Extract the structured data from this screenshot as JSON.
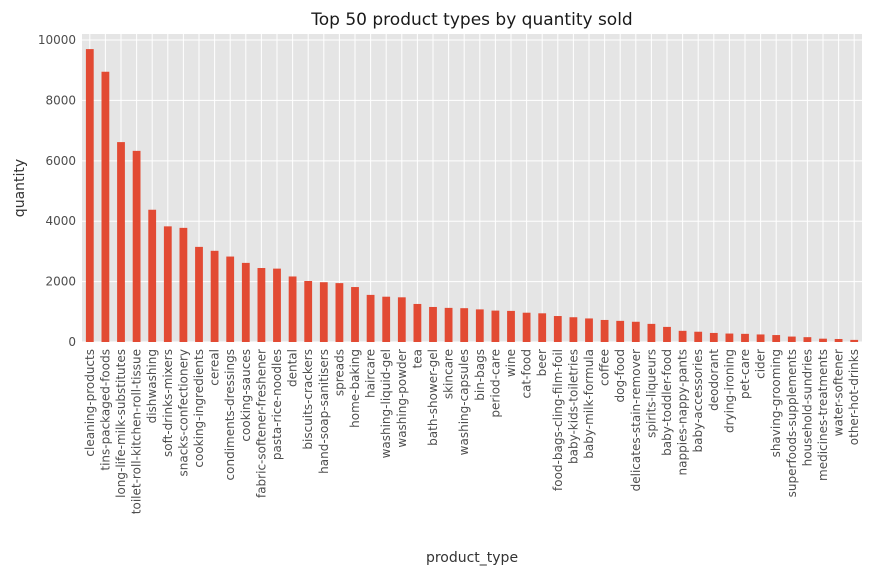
{
  "chart_data": {
    "type": "bar",
    "title": "Top 50 product types by quantity sold",
    "xlabel": "product_type",
    "ylabel": "quantity",
    "ylim": [
      0,
      10200
    ],
    "yticks": [
      0,
      2000,
      4000,
      6000,
      8000,
      10000
    ],
    "grid": true,
    "bar_color": "#E24A33",
    "background_color": "#E5E5E5",
    "grid_color": "#FFFFFF",
    "categories": [
      "cleaning-products",
      "tins-packaged-foods",
      "long-life-milk-substitutes",
      "toilet-roll-kitchen-roll-tissue",
      "dishwashing",
      "soft-drinks-mixers",
      "snacks-confectionery",
      "cooking-ingredients",
      "cereal",
      "condiments-dressings",
      "cooking-sauces",
      "fabric-softener-freshener",
      "pasta-rice-noodles",
      "dental",
      "biscuits-crackers",
      "hand-soap-sanitisers",
      "spreads",
      "home-baking",
      "haircare",
      "washing-liquid-gel",
      "washing-powder",
      "tea",
      "bath-shower-gel",
      "skincare",
      "washing-capsules",
      "bin-bags",
      "period-care",
      "wine",
      "cat-food",
      "beer",
      "food-bags-cling-film-foil",
      "baby-kids-toiletries",
      "baby-milk-formula",
      "coffee",
      "dog-food",
      "delicates-stain-remover",
      "spirits-liqueurs",
      "baby-toddler-food",
      "nappies-nappy-pants",
      "baby-accessories",
      "deodorant",
      "drying-ironing",
      "pet-care",
      "cider",
      "shaving-grooming",
      "superfoods-supplements",
      "household-sundries",
      "medicines-treatments",
      "water-softener",
      "other-hot-drinks"
    ],
    "values": [
      9700,
      8950,
      6620,
      6330,
      4380,
      3830,
      3780,
      3150,
      3020,
      2830,
      2620,
      2450,
      2430,
      2170,
      2020,
      1980,
      1950,
      1820,
      1560,
      1500,
      1480,
      1260,
      1160,
      1130,
      1120,
      1080,
      1040,
      1030,
      970,
      950,
      860,
      820,
      780,
      730,
      700,
      670,
      600,
      500,
      370,
      340,
      300,
      280,
      270,
      250,
      230,
      180,
      160,
      110,
      100,
      70
    ]
  }
}
